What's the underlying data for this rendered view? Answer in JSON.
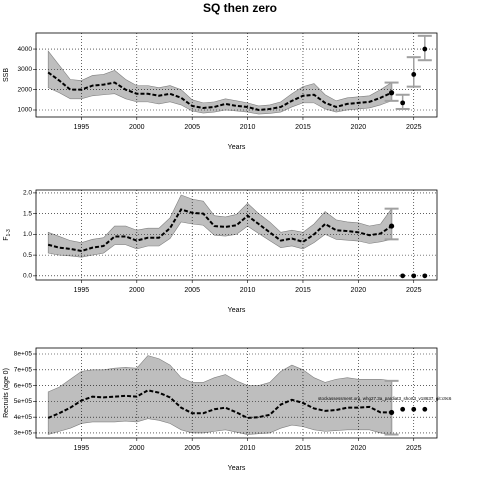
{
  "title": "SQ then zero",
  "chart_data": [
    {
      "type": "line",
      "ylabel": "SSB",
      "xlabel": "Years",
      "x": [
        1992,
        1993,
        1994,
        1995,
        1996,
        1997,
        1998,
        1999,
        2000,
        2001,
        2002,
        2003,
        2004,
        2005,
        2006,
        2007,
        2008,
        2009,
        2010,
        2011,
        2012,
        2013,
        2014,
        2015,
        2016,
        2017,
        2018,
        2019,
        2020,
        2021,
        2022,
        2023
      ],
      "values": [
        2850,
        2450,
        2000,
        2000,
        2200,
        2250,
        2350,
        2000,
        1800,
        1800,
        1700,
        1800,
        1600,
        1200,
        1100,
        1150,
        1300,
        1200,
        1150,
        1000,
        1050,
        1150,
        1450,
        1700,
        1750,
        1350,
        1150,
        1300,
        1350,
        1400,
        1600,
        1850
      ],
      "upper": [
        3900,
        3200,
        2500,
        2450,
        2700,
        2750,
        2950,
        2500,
        2200,
        2200,
        2100,
        2200,
        2000,
        1500,
        1350,
        1400,
        1550,
        1450,
        1350,
        1200,
        1250,
        1400,
        1800,
        2150,
        2300,
        1750,
        1450,
        1600,
        1650,
        1700,
        2000,
        2350
      ],
      "lower": [
        2100,
        1850,
        1550,
        1550,
        1700,
        1750,
        1800,
        1550,
        1400,
        1400,
        1300,
        1400,
        1250,
        950,
        850,
        900,
        1000,
        950,
        900,
        800,
        830,
        900,
        1150,
        1350,
        1350,
        1050,
        900,
        1000,
        1050,
        1100,
        1250,
        1450
      ],
      "last_ci": [
        1450,
        2350
      ],
      "proj_x": [
        2024,
        2025,
        2026
      ],
      "proj_values": [
        1350,
        2750,
        4000
      ],
      "proj_lower": [
        1050,
        2150,
        3450
      ],
      "proj_upper": [
        1750,
        3600,
        4650
      ],
      "xlim": [
        1990.9,
        2027.1
      ],
      "xticks": [
        1995,
        2000,
        2005,
        2010,
        2015,
        2020,
        2025
      ],
      "ylim": [
        655,
        4790
      ],
      "yticks": [
        1000,
        2000,
        3000,
        4000
      ],
      "grid": true,
      "color": "#000000",
      "band_color": "#bebebe"
    },
    {
      "type": "line",
      "ylabel": "F",
      "ylabel_sub": "1-3",
      "xlabel": "Years",
      "x": [
        1992,
        1993,
        1994,
        1995,
        1996,
        1997,
        1998,
        1999,
        2000,
        2001,
        2002,
        2003,
        2004,
        2005,
        2006,
        2007,
        2008,
        2009,
        2010,
        2011,
        2012,
        2013,
        2014,
        2015,
        2016,
        2017,
        2018,
        2019,
        2020,
        2021,
        2022,
        2023
      ],
      "values": [
        0.75,
        0.68,
        0.65,
        0.6,
        0.68,
        0.72,
        0.95,
        0.95,
        0.85,
        0.92,
        0.92,
        1.15,
        1.6,
        1.52,
        1.5,
        1.2,
        1.18,
        1.22,
        1.45,
        1.25,
        1.05,
        0.85,
        0.9,
        0.82,
        1.0,
        1.25,
        1.1,
        1.08,
        1.05,
        0.98,
        1.02,
        1.2
      ],
      "upper": [
        1.05,
        0.95,
        0.85,
        0.8,
        0.88,
        0.92,
        1.2,
        1.2,
        1.1,
        1.15,
        1.15,
        1.4,
        1.95,
        1.85,
        1.8,
        1.45,
        1.42,
        1.48,
        1.75,
        1.5,
        1.3,
        1.05,
        1.1,
        1.05,
        1.25,
        1.55,
        1.35,
        1.3,
        1.28,
        1.2,
        1.25,
        1.62
      ],
      "lower": [
        0.55,
        0.5,
        0.48,
        0.45,
        0.5,
        0.55,
        0.75,
        0.75,
        0.65,
        0.72,
        0.72,
        0.9,
        1.3,
        1.25,
        1.22,
        0.98,
        0.96,
        1.0,
        1.2,
        1.02,
        0.85,
        0.68,
        0.72,
        0.65,
        0.8,
        1.0,
        0.88,
        0.86,
        0.84,
        0.78,
        0.82,
        0.88
      ],
      "last_ci": [
        0.88,
        1.62
      ],
      "proj_x": [
        2024,
        2025,
        2026
      ],
      "proj_values": [
        0,
        0,
        0
      ],
      "proj_lower": [
        null,
        null,
        null
      ],
      "proj_upper": [
        null,
        null,
        null
      ],
      "xlim": [
        1990.9,
        2027.1
      ],
      "xticks": [
        1995,
        2000,
        2005,
        2010,
        2015,
        2020,
        2025
      ],
      "ylim": [
        -0.1,
        2.07
      ],
      "yticks": [
        {
          "value": 0,
          "label": "0.0"
        },
        0.5,
        {
          "value": 1,
          "label": "1.0"
        },
        1.5,
        {
          "value": 2,
          "label": "2.0"
        }
      ],
      "grid": true,
      "color": "#000000",
      "band_color": "#bebebe"
    },
    {
      "type": "line",
      "ylabel": "Recruits (age 0)",
      "xlabel": "Years",
      "annotation": "stockassessment.org, whg27.3a_pardiat3_short3_v18637, git:c9c6",
      "x": [
        1992,
        1993,
        1994,
        1995,
        1996,
        1997,
        1998,
        1999,
        2000,
        2001,
        2002,
        2003,
        2004,
        2005,
        2006,
        2007,
        2008,
        2009,
        2010,
        2011,
        2012,
        2013,
        2014,
        2015,
        2016,
        2017,
        2018,
        2019,
        2020,
        2021,
        2022,
        2023
      ],
      "values": [
        395000,
        425000,
        460000,
        505000,
        530000,
        525000,
        530000,
        535000,
        530000,
        570000,
        555000,
        525000,
        460000,
        425000,
        425000,
        450000,
        460000,
        430000,
        395000,
        400000,
        415000,
        480000,
        510000,
        490000,
        455000,
        440000,
        445000,
        460000,
        460000,
        465000,
        430000,
        430000
      ],
      "upper": [
        560000,
        590000,
        640000,
        690000,
        700000,
        700000,
        710000,
        715000,
        710000,
        790000,
        770000,
        730000,
        650000,
        620000,
        620000,
        650000,
        670000,
        630000,
        600000,
        600000,
        620000,
        690000,
        730000,
        700000,
        650000,
        620000,
        640000,
        650000,
        640000,
        640000,
        640000,
        630000
      ],
      "lower": [
        290000,
        310000,
        330000,
        360000,
        370000,
        370000,
        370000,
        375000,
        370000,
        390000,
        380000,
        360000,
        320000,
        300000,
        300000,
        310000,
        320000,
        305000,
        290000,
        295000,
        300000,
        330000,
        350000,
        340000,
        320000,
        310000,
        315000,
        320000,
        320000,
        320000,
        300000,
        290000
      ],
      "last_ci": [
        290000,
        630000
      ],
      "proj_x": [
        2024,
        2025,
        2026
      ],
      "proj_values": [
        450000,
        450000,
        450000
      ],
      "proj_lower": [
        null,
        null,
        null
      ],
      "proj_upper": [
        null,
        null,
        null
      ],
      "xlim": [
        1990.9,
        2027.1
      ],
      "xticks": [
        1995,
        2000,
        2005,
        2010,
        2015,
        2020,
        2025
      ],
      "ylim": [
        268000,
        838000
      ],
      "yticks": [
        {
          "value": 300000,
          "label": "3e+05"
        },
        {
          "value": 400000,
          "label": "4e+05"
        },
        {
          "value": 500000,
          "label": "5e+05"
        },
        {
          "value": 600000,
          "label": "6e+05"
        },
        {
          "value": 700000,
          "label": "7e+05"
        },
        {
          "value": 800000,
          "label": "8e+05"
        }
      ],
      "grid": true,
      "color": "#000000",
      "band_color": "#bebebe"
    }
  ]
}
